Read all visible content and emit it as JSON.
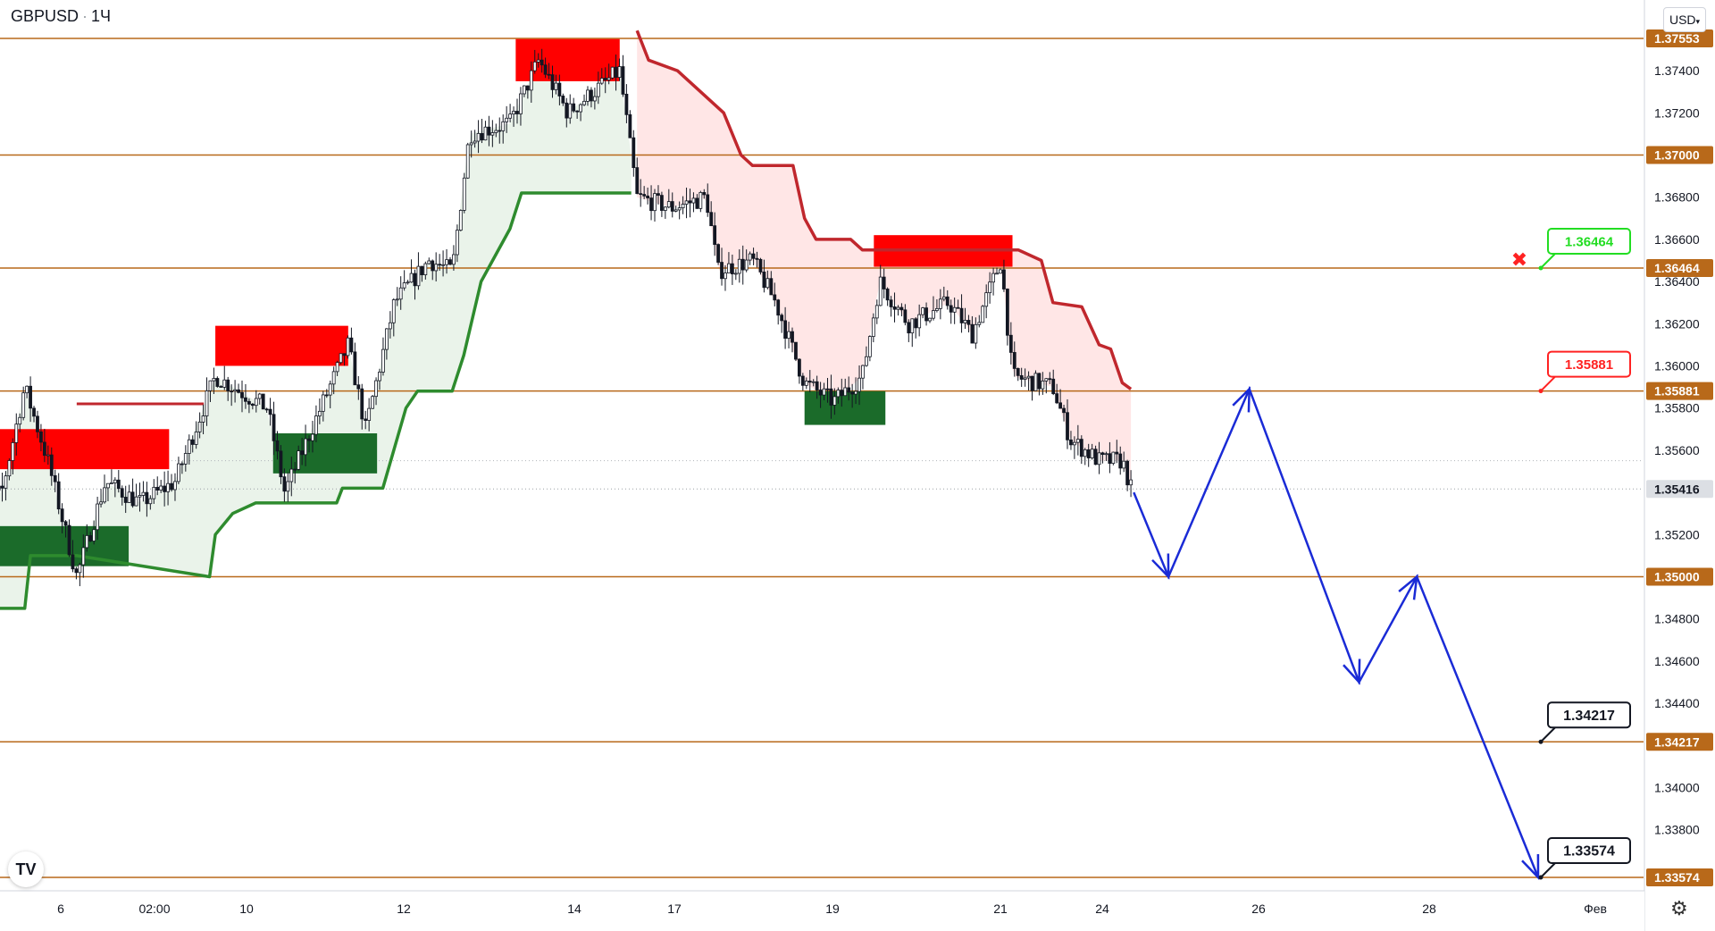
{
  "header": {
    "symbol": "GBPUSD",
    "interval": "1Ч",
    "currency": "USD"
  },
  "icons": {
    "logo": "tradingview-logo-icon",
    "settings": "gear-icon",
    "currency_dropdown": "chevron-down-icon",
    "cancel": "x-mark-icon"
  },
  "colors": {
    "level_line": "#b8691a",
    "up_trend": "#2e8b2e",
    "down_trend": "#c0272d",
    "supply_zone": "#ff0000",
    "demand_zone": "#1b6b2a",
    "forecast": "#1a2bd6",
    "candle": "#131722",
    "bg": "#ffffff",
    "green_label": "#22dd22",
    "red_label": "#ff2222",
    "price_tag": "#b8691a"
  },
  "chart_data": {
    "type": "candlestick",
    "symbol": "GBPUSD",
    "interval": "1Ч",
    "x_axis": {
      "ticks": [
        "6",
        "02:00",
        "10",
        "12",
        "14",
        "17",
        "19",
        "21",
        "24",
        "26",
        "28",
        "Фев"
      ]
    },
    "y_axis": {
      "range": [
        1.3355,
        1.377
      ],
      "ticks": [
        "1.37400",
        "1.37200",
        "1.36800",
        "1.36600",
        "1.36400",
        "1.36200",
        "1.36000",
        "1.35800",
        "1.35600",
        "1.35200",
        "1.34800",
        "1.34600",
        "1.34400",
        "1.34000",
        "1.33800"
      ]
    },
    "levels": [
      {
        "price": 1.37553,
        "label": "1.37553"
      },
      {
        "price": 1.37,
        "label": "1.37000"
      },
      {
        "price": 1.36464,
        "label": "1.36464"
      },
      {
        "price": 1.35881,
        "label": "1.35881"
      },
      {
        "price": 1.35,
        "label": "1.35000"
      },
      {
        "price": 1.34217,
        "label": "1.34217"
      },
      {
        "price": 1.33574,
        "label": "1.33574"
      }
    ],
    "last_price": {
      "price": 1.35416,
      "label": "1.35416"
    },
    "callouts": [
      {
        "label": "1.36464",
        "price": 1.36464,
        "style": "green",
        "cancelled": true
      },
      {
        "label": "1.35881",
        "price": 1.35881,
        "style": "red"
      },
      {
        "label": "1.34217",
        "price": 1.34217,
        "style": "black"
      },
      {
        "label": "1.33574",
        "price": 1.33574,
        "style": "black"
      }
    ],
    "supply_zones": [
      {
        "day": [
          0,
          3.5
        ],
        "price": [
          1.3551,
          1.357
        ]
      },
      {
        "day": [
          4.3,
          6.6
        ],
        "price": [
          1.36,
          1.3619
        ]
      },
      {
        "day": [
          9.5,
          11.3
        ],
        "price": [
          1.3735,
          1.3755
        ]
      },
      {
        "day": [
          15.7,
          18.1
        ],
        "price": [
          1.3647,
          1.3662
        ]
      }
    ],
    "demand_zones": [
      {
        "day": [
          0,
          2.8
        ],
        "price": [
          1.3505,
          1.3524
        ]
      },
      {
        "day": [
          5.3,
          7.1
        ],
        "price": [
          1.3549,
          1.3568
        ]
      },
      {
        "day": [
          14.5,
          15.9
        ],
        "price": [
          1.3572,
          1.3588
        ]
      }
    ],
    "trend_up": [
      {
        "day": 0.0,
        "price": 1.3467
      },
      {
        "day": 0.3,
        "price": 1.3476
      },
      {
        "day": 0.5,
        "price": 1.3485
      },
      {
        "day": 1.0,
        "price": 1.3485
      },
      {
        "day": 1.1,
        "price": 1.351
      },
      {
        "day": 1.9,
        "price": 1.351
      },
      {
        "day": 4.2,
        "price": 1.35
      },
      {
        "day": 4.3,
        "price": 1.352
      },
      {
        "day": 4.6,
        "price": 1.353
      },
      {
        "day": 5.0,
        "price": 1.3535
      },
      {
        "day": 6.4,
        "price": 1.3535
      },
      {
        "day": 6.5,
        "price": 1.3542
      },
      {
        "day": 7.2,
        "price": 1.3542
      },
      {
        "day": 7.6,
        "price": 1.358
      },
      {
        "day": 7.8,
        "price": 1.3588
      },
      {
        "day": 8.4,
        "price": 1.3588
      },
      {
        "day": 8.6,
        "price": 1.3605
      },
      {
        "day": 8.9,
        "price": 1.364
      },
      {
        "day": 9.4,
        "price": 1.3665
      },
      {
        "day": 9.6,
        "price": 1.3682
      },
      {
        "day": 11.5,
        "price": 1.3682
      }
    ],
    "trend_down": [
      {
        "day": 11.6,
        "price": 1.3759
      },
      {
        "day": 11.8,
        "price": 1.3745
      },
      {
        "day": 12.3,
        "price": 1.374
      },
      {
        "day": 12.7,
        "price": 1.373
      },
      {
        "day": 13.1,
        "price": 1.372
      },
      {
        "day": 13.4,
        "price": 1.37
      },
      {
        "day": 13.6,
        "price": 1.3695
      },
      {
        "day": 14.3,
        "price": 1.3695
      },
      {
        "day": 14.5,
        "price": 1.367
      },
      {
        "day": 14.7,
        "price": 1.366
      },
      {
        "day": 15.3,
        "price": 1.366
      },
      {
        "day": 15.5,
        "price": 1.3655
      },
      {
        "day": 18.2,
        "price": 1.3655
      },
      {
        "day": 18.6,
        "price": 1.365
      },
      {
        "day": 18.8,
        "price": 1.363
      },
      {
        "day": 19.3,
        "price": 1.3628
      },
      {
        "day": 19.6,
        "price": 1.361
      },
      {
        "day": 19.8,
        "price": 1.3608
      },
      {
        "day": 20.0,
        "price": 1.3592
      },
      {
        "day": 20.15,
        "price": 1.3589
      }
    ],
    "resistance_segment": {
      "day": [
        1.9,
        4.1
      ],
      "price": 1.3582
    },
    "forecast_path": [
      {
        "day": 20.2,
        "price": 1.354
      },
      {
        "day": 20.8,
        "price": 1.35
      },
      {
        "day": 22.2,
        "price": 1.3589
      },
      {
        "day": 24.1,
        "price": 1.345
      },
      {
        "day": 25.1,
        "price": 1.35
      },
      {
        "day": 27.2,
        "price": 1.33574
      }
    ],
    "price_path_anchors": [
      {
        "day": 0.0,
        "price": 1.353
      },
      {
        "day": 0.6,
        "price": 1.354
      },
      {
        "day": 1.0,
        "price": 1.359
      },
      {
        "day": 1.4,
        "price": 1.3555
      },
      {
        "day": 1.9,
        "price": 1.35
      },
      {
        "day": 2.4,
        "price": 1.3545
      },
      {
        "day": 3.0,
        "price": 1.3535
      },
      {
        "day": 3.6,
        "price": 1.3545
      },
      {
        "day": 4.3,
        "price": 1.3595
      },
      {
        "day": 5.2,
        "price": 1.358
      },
      {
        "day": 5.5,
        "price": 1.354
      },
      {
        "day": 6.2,
        "price": 1.3585
      },
      {
        "day": 6.6,
        "price": 1.361
      },
      {
        "day": 6.9,
        "price": 1.357
      },
      {
        "day": 7.4,
        "price": 1.363
      },
      {
        "day": 8.0,
        "price": 1.365
      },
      {
        "day": 8.4,
        "price": 1.3645
      },
      {
        "day": 8.7,
        "price": 1.371
      },
      {
        "day": 9.4,
        "price": 1.3715
      },
      {
        "day": 9.9,
        "price": 1.3745
      },
      {
        "day": 10.4,
        "price": 1.372
      },
      {
        "day": 11.3,
        "price": 1.374
      },
      {
        "day": 11.6,
        "price": 1.368
      },
      {
        "day": 12.2,
        "price": 1.3675
      },
      {
        "day": 12.8,
        "price": 1.368
      },
      {
        "day": 13.0,
        "price": 1.3645
      },
      {
        "day": 13.6,
        "price": 1.365
      },
      {
        "day": 14.0,
        "price": 1.363
      },
      {
        "day": 14.5,
        "price": 1.3592
      },
      {
        "day": 15.0,
        "price": 1.3583
      },
      {
        "day": 15.5,
        "price": 1.3595
      },
      {
        "day": 15.8,
        "price": 1.364
      },
      {
        "day": 16.3,
        "price": 1.362
      },
      {
        "day": 17.0,
        "price": 1.363
      },
      {
        "day": 17.4,
        "price": 1.3615
      },
      {
        "day": 17.9,
        "price": 1.365
      },
      {
        "day": 18.1,
        "price": 1.3595
      },
      {
        "day": 18.8,
        "price": 1.359
      },
      {
        "day": 19.1,
        "price": 1.3565
      },
      {
        "day": 19.6,
        "price": 1.3555
      },
      {
        "day": 20.0,
        "price": 1.3555
      },
      {
        "day": 20.15,
        "price": 1.3542
      }
    ]
  }
}
